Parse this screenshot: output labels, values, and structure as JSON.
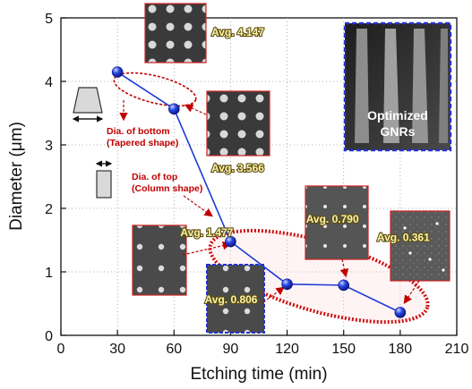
{
  "chart_data": {
    "type": "line",
    "x": [
      30,
      60,
      90,
      120,
      150,
      180
    ],
    "series": [
      {
        "values": [
          4.147,
          3.566,
          1.477,
          0.806,
          0.79,
          0.361
        ]
      }
    ],
    "xlabel": "Etching time (min)",
    "ylabel": "Diameter (μm)",
    "xlim": [
      0,
      210
    ],
    "ylim": [
      0,
      5
    ],
    "xticks": [
      "0",
      "30",
      "60",
      "90",
      "120",
      "150",
      "180",
      "210"
    ],
    "yticks": [
      "0",
      "1",
      "2",
      "3",
      "4",
      "5"
    ],
    "grid": true,
    "series_color": "#1f3bd8",
    "annotations": {
      "avg_labels": [
        "Avg. 4.147",
        "Avg. 3.566",
        "Avg. 1.477",
        "Avg. 0.806",
        "Avg. 0.790",
        "Avg. 0.361"
      ],
      "bottom_label_1": "Dia. of bottom",
      "bottom_label_2": "(Tapered shape)",
      "top_label_1": "Dia. of top",
      "top_label_2": "(Column shape)",
      "inset_label_1": "Optimized",
      "inset_label_2": "GNRs"
    }
  },
  "colors": {
    "annotation_red": "#c00000",
    "inset_border_blue": "#2233cc",
    "sem_border_red": "#cc2222"
  }
}
